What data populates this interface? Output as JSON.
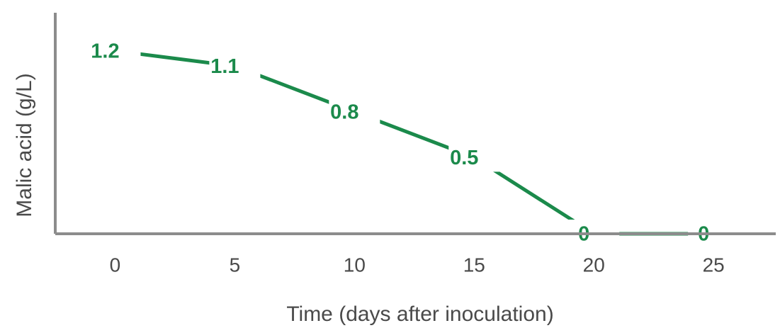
{
  "chart_data": {
    "type": "line",
    "x_label": "Time (days after inoculation)",
    "y_label": "Malic acid (g/L)",
    "x": [
      0,
      5,
      10,
      15,
      20,
      25
    ],
    "xlim": [
      -2.5,
      27.6
    ],
    "xticks": [
      0,
      5,
      10,
      15,
      20,
      25
    ],
    "ylim": [
      0,
      1.45
    ],
    "series": [
      {
        "color": "#1b8a4b",
        "values": [
          1.2,
          1.1,
          0.8,
          0.5,
          0,
          0
        ]
      }
    ],
    "axis_color": "#8c8c8c"
  }
}
